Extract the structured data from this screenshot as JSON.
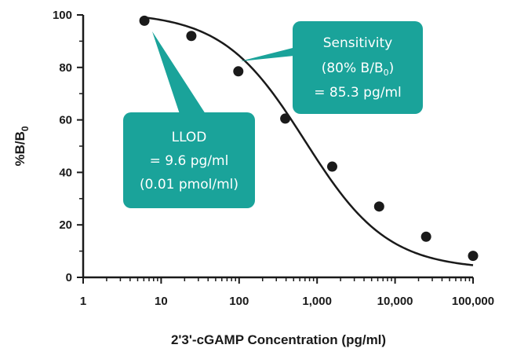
{
  "chart_data": {
    "type": "scatter",
    "xscale": "log",
    "xlim": [
      1,
      100000
    ],
    "ylim": [
      0,
      100
    ],
    "xticks": [
      1,
      10,
      100,
      1000,
      10000,
      100000
    ],
    "xtick_labels": [
      "1",
      "10",
      "100",
      "1,000",
      "10,000",
      "100,000"
    ],
    "yticks": [
      0,
      20,
      40,
      60,
      80,
      100
    ],
    "ytick_labels": [
      "0",
      "20",
      "40",
      "60",
      "80",
      "100"
    ],
    "xlabel": "2'3'-cGAMP Concentration (pg/ml)",
    "ylabel": "%B/B0",
    "ylabel_main": "%B/B",
    "ylabel_sub": "0",
    "series": [
      {
        "x": [
          6.1,
          24.4,
          97.7,
          390.6,
          1562.5,
          6250,
          25000,
          100000
        ],
        "y": [
          97.8,
          92.0,
          78.5,
          60.5,
          42.2,
          27.0,
          15.5,
          8.2
        ],
        "fit": "4PL",
        "color": "#1a1a1a"
      }
    ],
    "grid": false,
    "annotations": [
      {
        "id": "sensitivity",
        "lines": [
          "Sensitivity",
          "(80% B/B",
          "0",
          ")",
          "= 85.3 pg/ml"
        ],
        "full_text": "Sensitivity (80% B/B0) = 85.3 pg/ml",
        "color": "#1aa39a"
      },
      {
        "id": "llod",
        "lines": [
          "LLOD",
          "= 9.6 pg/ml",
          "(0.01 pmol/ml)"
        ],
        "color": "#1aa39a"
      }
    ]
  }
}
